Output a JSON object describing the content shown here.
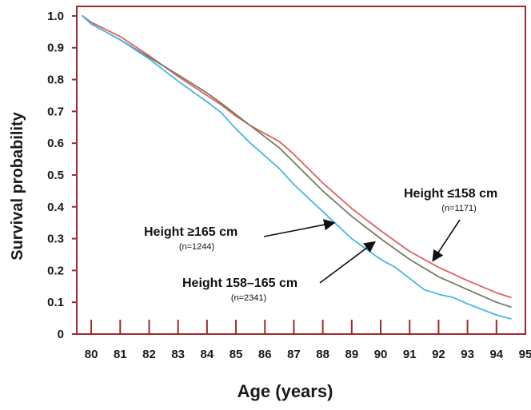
{
  "chart_data": {
    "type": "line",
    "title": "",
    "xlabel": "Age (years)",
    "ylabel": "Survival probability",
    "xlim": [
      79.5,
      95
    ],
    "ylim": [
      0,
      1.03
    ],
    "x_ticks": [
      80,
      81,
      82,
      83,
      84,
      85,
      86,
      87,
      88,
      89,
      90,
      91,
      92,
      93,
      94,
      95
    ],
    "y_ticks": [
      0,
      0.1,
      0.2,
      0.3,
      0.4,
      0.5,
      0.6,
      0.7,
      0.8,
      0.9,
      1.0
    ],
    "x_tick_labels": [
      "80",
      "81",
      "82",
      "83",
      "84",
      "85",
      "86",
      "87",
      "88",
      "89",
      "90",
      "91",
      "92",
      "93",
      "94",
      "95"
    ],
    "y_tick_labels": [
      "0",
      "0.1",
      "0.2",
      "0.3",
      "0.4",
      "0.5",
      "0.6",
      "0.7",
      "0.8",
      "0.9",
      "1.0"
    ],
    "grid": false,
    "legend": "none",
    "frame_color": "#9e2a2f",
    "series": [
      {
        "name": "Height ≤158 cm",
        "n_label": "(n=1171)",
        "color": "#e06060",
        "x": [
          79.7,
          80,
          81,
          82,
          83,
          84,
          84.5,
          85,
          85.5,
          86,
          86.5,
          87,
          88,
          89,
          90,
          91,
          92,
          93,
          94,
          94.5
        ],
        "y": [
          1.0,
          0.98,
          0.935,
          0.875,
          0.81,
          0.75,
          0.72,
          0.685,
          0.655,
          0.63,
          0.605,
          0.565,
          0.475,
          0.395,
          0.325,
          0.26,
          0.21,
          0.168,
          0.13,
          0.115
        ]
      },
      {
        "name": "Height 158–165 cm",
        "n_label": "(n=2341)",
        "color": "#7a7a66",
        "x": [
          79.7,
          80,
          81,
          82,
          83,
          84,
          84.5,
          85,
          85.5,
          86,
          86.5,
          87,
          88,
          89,
          90,
          91,
          92,
          93,
          94,
          94.5
        ],
        "y": [
          1.0,
          0.975,
          0.925,
          0.87,
          0.815,
          0.758,
          0.725,
          0.69,
          0.655,
          0.62,
          0.585,
          0.54,
          0.45,
          0.37,
          0.3,
          0.235,
          0.18,
          0.14,
          0.1,
          0.085
        ]
      },
      {
        "name": "Height ≥165 cm",
        "n_label": "(n=1244)",
        "color": "#45b8e8",
        "x": [
          79.7,
          80,
          81,
          82,
          83,
          84,
          84.5,
          85,
          85.5,
          86,
          86.5,
          87,
          88,
          89,
          90,
          90.5,
          91,
          91.5,
          92,
          92.5,
          93,
          94,
          94.5
        ],
        "y": [
          1.0,
          0.975,
          0.925,
          0.865,
          0.795,
          0.73,
          0.695,
          0.645,
          0.6,
          0.56,
          0.52,
          0.47,
          0.385,
          0.3,
          0.235,
          0.21,
          0.175,
          0.14,
          0.125,
          0.115,
          0.095,
          0.06,
          0.048
        ]
      }
    ],
    "annotations": [
      {
        "label": "Height ≤158 cm",
        "sub": "(n=1171)",
        "arrow_target": [
          91.8,
          0.23
        ]
      },
      {
        "label": "Height ≥165 cm",
        "sub": "(n=1244)",
        "arrow_target": [
          88.4,
          0.35
        ]
      },
      {
        "label": "Height 158–165 cm",
        "sub": "(n=2341)",
        "arrow_target": [
          89.8,
          0.29
        ]
      }
    ]
  }
}
